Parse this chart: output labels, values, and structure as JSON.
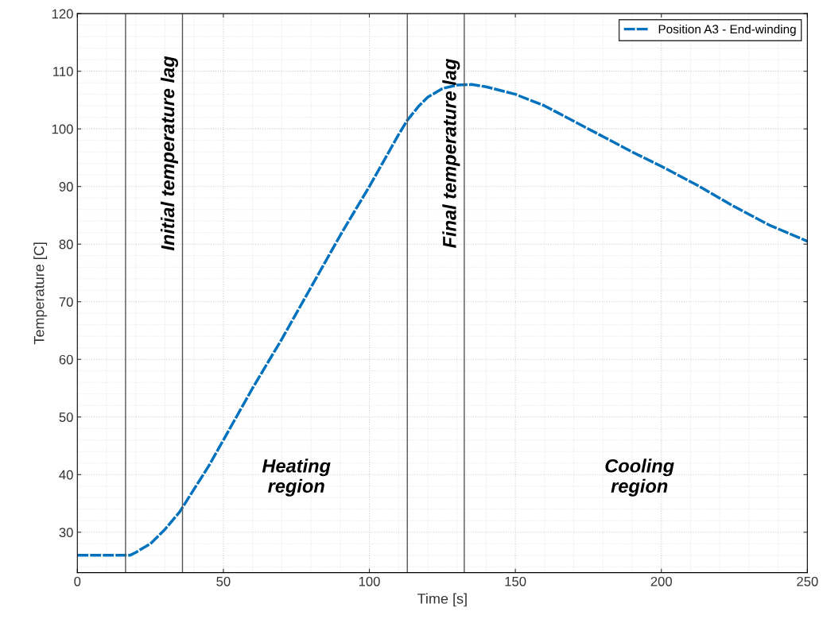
{
  "chart_data": {
    "type": "line",
    "xlabel": "Time [s]",
    "ylabel": "Temperature [C]",
    "x": [
      0,
      10,
      16,
      18,
      20,
      25,
      30,
      35,
      40,
      45,
      50,
      60,
      70,
      80,
      90,
      100,
      105,
      110,
      113,
      117,
      120,
      125,
      130,
      135,
      140,
      150,
      160,
      175,
      190,
      200,
      212,
      225,
      237,
      250
    ],
    "series": [
      {
        "name": "Position A3 - End-winding",
        "color": "#0072bd",
        "values": [
          26,
          26,
          26,
          26,
          26.5,
          28,
          30.5,
          33.5,
          37.5,
          41.5,
          46,
          55,
          63.5,
          72.5,
          81.5,
          90,
          94.5,
          99,
          101.5,
          104,
          105.5,
          107,
          107.6,
          107.7,
          107.3,
          106,
          104,
          100,
          96,
          93.5,
          90.3,
          86.5,
          83.3,
          80.5
        ]
      }
    ],
    "xlim": [
      0,
      250
    ],
    "xticks": [
      0,
      50,
      100,
      150,
      200,
      250
    ],
    "ylim": [
      23,
      120
    ],
    "yticks": [
      30,
      40,
      50,
      60,
      70,
      80,
      90,
      100,
      110,
      120
    ],
    "ref_lines": [
      {
        "axis": "x",
        "value": 16.5,
        "color": "#555555"
      },
      {
        "axis": "x",
        "value": 36,
        "label": "Initial temperature lag",
        "color": "#555555"
      },
      {
        "axis": "x",
        "value": 113,
        "color": "#555555"
      },
      {
        "axis": "x",
        "value": 132.5,
        "label": "Final temperature lag",
        "color": "#555555"
      }
    ],
    "annotations": [
      "Heating\nregion",
      "Cooling\nregion"
    ],
    "grid": true,
    "legend": "top right",
    "line_style": "dashed"
  }
}
